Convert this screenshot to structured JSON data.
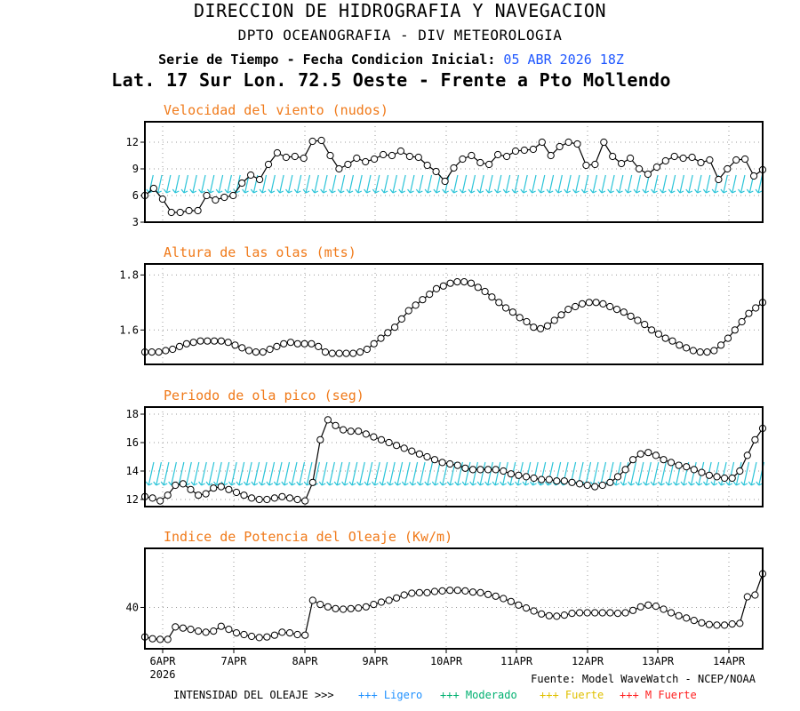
{
  "header": {
    "org": "DIRECCION DE HIDROGRAFIA Y NAVEGACION",
    "dept": "DPTO OCEANOGRAFIA - DIV METEOROLOGIA",
    "series_label": "Serie de Tiempo - Fecha Condicion Inicial:",
    "init_date": "05 ABR 2026 18Z",
    "location": "Lat. 17 Sur  Lon. 72.5 Oeste - Frente a Pto Mollendo"
  },
  "footer": {
    "source": "Fuente: Model WaveWatch - NCEP/NOAA",
    "intensity_label": "INTENSIDAD DEL OLEAJE >>>",
    "legend": [
      {
        "label": "+++ Ligero",
        "color": "#1e90ff"
      },
      {
        "label": "+++ Moderado",
        "color": "#00b070"
      },
      {
        "label": "+++ Fuerte",
        "color": "#f0d000"
      },
      {
        "label": "+++ M Fuerte",
        "color": "#ff2020"
      }
    ]
  },
  "colors": {
    "title": "#f07a1a",
    "arrows": "#2bc4d8",
    "line": "#000000"
  },
  "chart_data": [
    {
      "type": "line",
      "title": "Velocidad del viento (nudos)",
      "x_ticks": [
        "6APR",
        "7APR",
        "8APR",
        "9APR",
        "10APR",
        "11APR",
        "12APR",
        "13APR",
        "14APR"
      ],
      "x_year": "2026",
      "ylim": [
        3,
        14.3
      ],
      "yticks": [
        3,
        6,
        9,
        12
      ],
      "grid": true,
      "direction_arrows": true,
      "values": [
        6.0,
        6.8,
        5.6,
        4.1,
        4.1,
        4.3,
        4.3,
        6.0,
        5.5,
        5.8,
        6.0,
        7.4,
        8.3,
        7.8,
        9.5,
        10.8,
        10.3,
        10.4,
        10.2,
        12.1,
        12.2,
        10.5,
        9.0,
        9.5,
        10.2,
        9.8,
        10.1,
        10.6,
        10.5,
        11.0,
        10.4,
        10.3,
        9.4,
        8.7,
        7.6,
        9.1,
        10.1,
        10.5,
        9.7,
        9.5,
        10.6,
        10.4,
        11.0,
        11.1,
        11.2,
        12.0,
        10.5,
        11.5,
        12.0,
        11.8,
        9.4,
        9.5,
        12.0,
        10.4,
        9.6,
        10.2,
        9.0,
        8.4,
        9.2,
        9.9,
        10.4,
        10.2,
        10.3,
        9.7,
        10.0,
        7.8,
        9.0,
        10.0,
        10.1,
        8.2,
        8.9
      ]
    },
    {
      "type": "line",
      "title": "Altura de las olas (mts)",
      "x_ticks": [
        "6APR",
        "7APR",
        "8APR",
        "9APR",
        "10APR",
        "11APR",
        "12APR",
        "13APR",
        "14APR"
      ],
      "ylim": [
        1.475,
        1.84
      ],
      "yticks": [
        1.6,
        1.8
      ],
      "ytick_labels": [
        "1.6",
        "1.8"
      ],
      "grid": true,
      "values": [
        1.52,
        1.52,
        1.52,
        1.525,
        1.53,
        1.54,
        1.55,
        1.555,
        1.56,
        1.56,
        1.56,
        1.56,
        1.555,
        1.545,
        1.535,
        1.525,
        1.52,
        1.52,
        1.53,
        1.54,
        1.55,
        1.555,
        1.55,
        1.55,
        1.55,
        1.54,
        1.52,
        1.515,
        1.515,
        1.515,
        1.515,
        1.52,
        1.53,
        1.55,
        1.57,
        1.59,
        1.61,
        1.64,
        1.67,
        1.69,
        1.71,
        1.73,
        1.75,
        1.76,
        1.77,
        1.775,
        1.775,
        1.77,
        1.755,
        1.74,
        1.72,
        1.7,
        1.68,
        1.665,
        1.645,
        1.63,
        1.61,
        1.605,
        1.615,
        1.635,
        1.655,
        1.675,
        1.685,
        1.695,
        1.7,
        1.7,
        1.695,
        1.685,
        1.675,
        1.665,
        1.65,
        1.635,
        1.62,
        1.6,
        1.585,
        1.57,
        1.56,
        1.545,
        1.535,
        1.525,
        1.52,
        1.52,
        1.525,
        1.545,
        1.57,
        1.6,
        1.63,
        1.66,
        1.68,
        1.7
      ]
    },
    {
      "type": "line",
      "title": "Periodo de ola pico (seg)",
      "x_ticks": [
        "6APR",
        "7APR",
        "8APR",
        "9APR",
        "10APR",
        "11APR",
        "12APR",
        "13APR",
        "14APR"
      ],
      "ylim": [
        11.5,
        18.5
      ],
      "yticks": [
        12,
        14,
        16,
        18
      ],
      "grid": true,
      "direction_arrows": true,
      "values": [
        12.2,
        12.1,
        11.9,
        12.3,
        13.0,
        13.1,
        12.7,
        12.3,
        12.4,
        12.8,
        12.9,
        12.7,
        12.5,
        12.3,
        12.1,
        12.0,
        12.0,
        12.1,
        12.2,
        12.1,
        12.0,
        11.9,
        13.2,
        16.2,
        17.6,
        17.2,
        16.9,
        16.8,
        16.8,
        16.6,
        16.4,
        16.2,
        16.0,
        15.8,
        15.6,
        15.4,
        15.2,
        15.0,
        14.8,
        14.6,
        14.5,
        14.4,
        14.2,
        14.1,
        14.1,
        14.1,
        14.1,
        14.0,
        13.8,
        13.7,
        13.6,
        13.5,
        13.4,
        13.4,
        13.3,
        13.3,
        13.2,
        13.1,
        13.0,
        12.9,
        13.0,
        13.2,
        13.6,
        14.1,
        14.8,
        15.2,
        15.3,
        15.1,
        14.8,
        14.6,
        14.4,
        14.3,
        14.1,
        13.9,
        13.7,
        13.6,
        13.5,
        13.5,
        14.0,
        15.1,
        16.2,
        17.0
      ]
    },
    {
      "type": "line",
      "title": "Indice de Potencia del Oleaje (Kw/m)",
      "x_ticks": [
        "6APR",
        "7APR",
        "8APR",
        "9APR",
        "10APR",
        "11APR",
        "12APR",
        "13APR",
        "14APR"
      ],
      "ylim": [
        33,
        50
      ],
      "yticks": [
        40
      ],
      "grid": true,
      "values": [
        35.0,
        34.7,
        34.6,
        34.6,
        36.7,
        36.5,
        36.3,
        36.0,
        35.8,
        36.0,
        36.8,
        36.3,
        35.7,
        35.4,
        35.1,
        34.9,
        35.0,
        35.3,
        35.8,
        35.7,
        35.4,
        35.3,
        41.2,
        40.5,
        40.1,
        39.8,
        39.7,
        39.8,
        39.9,
        40.1,
        40.5,
        40.9,
        41.2,
        41.6,
        42.1,
        42.4,
        42.5,
        42.5,
        42.7,
        42.8,
        42.9,
        42.9,
        42.8,
        42.6,
        42.5,
        42.2,
        41.9,
        41.5,
        41.0,
        40.4,
        39.9,
        39.4,
        38.9,
        38.6,
        38.5,
        38.7,
        39.0,
        39.1,
        39.1,
        39.1,
        39.1,
        39.1,
        39.0,
        39.1,
        39.5,
        40.1,
        40.4,
        40.2,
        39.7,
        39.1,
        38.6,
        38.2,
        37.8,
        37.4,
        37.1,
        37.0,
        37.0,
        37.2,
        37.3,
        41.8,
        42.1,
        45.7
      ]
    }
  ]
}
